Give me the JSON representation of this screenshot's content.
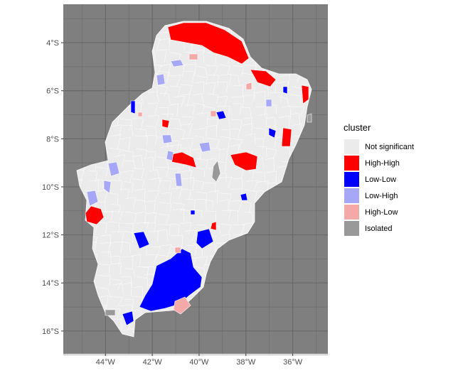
{
  "map": {
    "x_ticks": [
      {
        "value": -44,
        "label": "44°W"
      },
      {
        "value": -42,
        "label": "42°W"
      },
      {
        "value": -40,
        "label": "40°W"
      },
      {
        "value": -38,
        "label": "38°W"
      },
      {
        "value": -36,
        "label": "36°W"
      }
    ],
    "y_ticks": [
      {
        "value": -4,
        "label": "4°S"
      },
      {
        "value": -6,
        "label": "6°S"
      },
      {
        "value": -8,
        "label": "8°S"
      },
      {
        "value": -10,
        "label": "10°S"
      },
      {
        "value": -12,
        "label": "12°S"
      },
      {
        "value": -14,
        "label": "14°S"
      },
      {
        "value": -16,
        "label": "16°S"
      }
    ],
    "xlim": [
      -45.8,
      -34.5
    ],
    "ylim": [
      -16.95,
      -2.4
    ],
    "colors": {
      "panel_background": "#7f7f7f",
      "gridline": "#666666",
      "land": "#ebebeb",
      "border": "#ffffff"
    }
  },
  "legend": {
    "title": "cluster",
    "items": [
      {
        "label": "Not significant",
        "color": "#ebebeb"
      },
      {
        "label": "High-High",
        "color": "#ff0000"
      },
      {
        "label": "Low-Low",
        "color": "#0000ff"
      },
      {
        "label": "Low-High",
        "color": "#a7a7f7"
      },
      {
        "label": "High-Low",
        "color": "#f4a9a9"
      },
      {
        "label": "Isolated",
        "color": "#999999"
      }
    ]
  }
}
